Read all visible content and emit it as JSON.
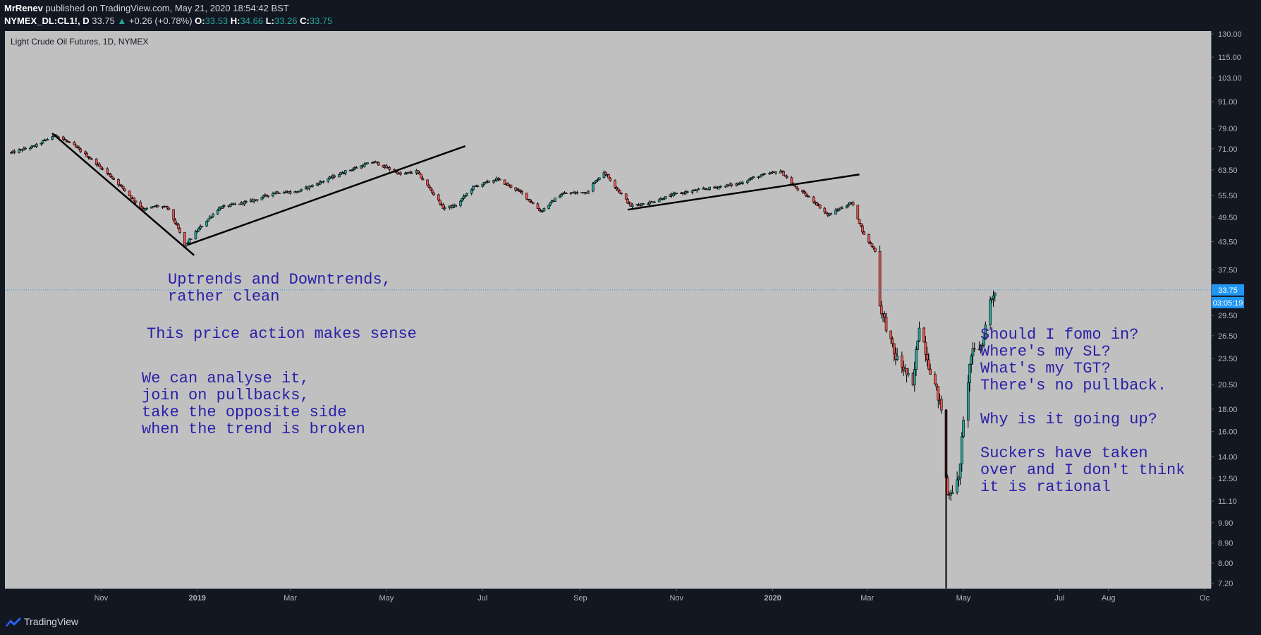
{
  "header": {
    "author": "MrRenev",
    "published": " published on TradingView.com, May 21, 2020 18:54:42 BST",
    "symbol": "NYMEX_DL:CL1!, D",
    "last": "33.75",
    "change": "+0.26 (+0.78%)",
    "o_label": "O:",
    "o_value": "33.53",
    "h_label": "H:",
    "h_value": "34.66",
    "l_label": "L:",
    "l_value": "33.26",
    "c_label": "C:",
    "c_value": "33.75"
  },
  "footer": {
    "brand": "TradingView"
  },
  "annotations": {
    "note1": "Uptrends and Downtrends,\nrather clean",
    "note2": "This price action makes sense",
    "note3": "We can analyse it,\njoin on pullbacks,\ntake the opposite side\nwhen the trend is broken",
    "note4": "Should I fomo in?\nWhere's my SL?\nWhat's my TGT?\nThere's no pullback.\n\nWhy is it going up?\n\nSuckers have taken\nover and I don't think\nit is rational"
  },
  "colors": {
    "plot_bg": "#c0c0c0",
    "axis_bg": "#131722",
    "axis_text": "#b2b5be",
    "up": "#26a69a",
    "down": "#ef5350",
    "candle_wick": "#000000",
    "price_label": "#2196f3",
    "note_text": "#2a1fa8"
  },
  "chart_data": {
    "type": "candlestick",
    "title": "Light Crude Oil Futures, 1D, NYMEX",
    "y_scale": "log",
    "ylim": [
      7.0,
      132.0
    ],
    "y_ticks": [
      "130.00",
      "115.00",
      "103.00",
      "91.00",
      "79.00",
      "71.00",
      "63.50",
      "55.50",
      "49.50",
      "43.50",
      "37.50",
      "33.75",
      "29.50",
      "26.50",
      "23.50",
      "20.50",
      "18.00",
      "16.00",
      "14.00",
      "12.50",
      "11.10",
      "9.90",
      "8.90",
      "8.00",
      "7.20"
    ],
    "x_ticks": [
      "Nov",
      "2019",
      "Mar",
      "May",
      "Jul",
      "Sep",
      "Nov",
      "2020",
      "Mar",
      "May",
      "Jul",
      "Aug",
      "Oc"
    ],
    "x_tick_dates": [
      "2018-11-01",
      "2019-01-01",
      "2019-03-01",
      "2019-05-01",
      "2019-07-01",
      "2019-09-01",
      "2019-11-01",
      "2020-01-01",
      "2020-03-01",
      "2020-05-01",
      "2020-07-01",
      "2020-08-01",
      "2020-10-01"
    ],
    "x_range": [
      "2018-09-01",
      "2020-10-05"
    ],
    "current_price": {
      "value": 33.75,
      "label": "33.75",
      "countdown": "03:05:19"
    },
    "price_path": [
      [
        "2018-09-05",
        69.5
      ],
      [
        "2018-09-20",
        72.0
      ],
      [
        "2018-10-03",
        76.4
      ],
      [
        "2018-10-15",
        72.0
      ],
      [
        "2018-10-25",
        67.5
      ],
      [
        "2018-11-08",
        61.0
      ],
      [
        "2018-11-20",
        55.0
      ],
      [
        "2018-11-28",
        51.5
      ],
      [
        "2018-12-06",
        52.5
      ],
      [
        "2018-12-13",
        52.0
      ],
      [
        "2018-12-20",
        46.5
      ],
      [
        "2018-12-24",
        42.5
      ],
      [
        "2019-01-03",
        47.0
      ],
      [
        "2019-01-15",
        52.0
      ],
      [
        "2019-02-05",
        54.0
      ],
      [
        "2019-02-20",
        56.5
      ],
      [
        "2019-03-05",
        56.5
      ],
      [
        "2019-03-20",
        59.5
      ],
      [
        "2019-04-05",
        63.0
      ],
      [
        "2019-04-23",
        66.3
      ],
      [
        "2019-05-10",
        62.0
      ],
      [
        "2019-05-20",
        63.0
      ],
      [
        "2019-05-30",
        56.5
      ],
      [
        "2019-06-06",
        52.0
      ],
      [
        "2019-06-14",
        52.5
      ],
      [
        "2019-06-25",
        58.0
      ],
      [
        "2019-07-10",
        60.5
      ],
      [
        "2019-07-25",
        56.5
      ],
      [
        "2019-08-07",
        51.0
      ],
      [
        "2019-08-20",
        56.0
      ],
      [
        "2019-09-05",
        56.5
      ],
      [
        "2019-09-16",
        62.9
      ],
      [
        "2019-09-25",
        57.0
      ],
      [
        "2019-10-03",
        52.5
      ],
      [
        "2019-10-15",
        53.5
      ],
      [
        "2019-11-01",
        56.0
      ],
      [
        "2019-11-20",
        57.5
      ],
      [
        "2019-12-10",
        59.0
      ],
      [
        "2019-12-20",
        61.0
      ],
      [
        "2020-01-06",
        63.2
      ],
      [
        "2020-01-15",
        58.0
      ],
      [
        "2020-01-28",
        53.5
      ],
      [
        "2020-02-05",
        50.0
      ],
      [
        "2020-02-20",
        53.5
      ],
      [
        "2020-02-28",
        45.0
      ],
      [
        "2020-03-06",
        41.5
      ],
      [
        "2020-03-09",
        31.1
      ],
      [
        "2020-03-18",
        24.0
      ],
      [
        "2020-03-25",
        22.0
      ],
      [
        "2020-03-30",
        20.1
      ],
      [
        "2020-04-03",
        28.3
      ],
      [
        "2020-04-09",
        22.8
      ],
      [
        "2020-04-17",
        18.0
      ],
      [
        "2020-04-20",
        12.5
      ],
      [
        "2020-04-21",
        11.5
      ],
      [
        "2020-04-28",
        12.3
      ],
      [
        "2020-05-06",
        24.0
      ],
      [
        "2020-05-13",
        25.3
      ],
      [
        "2020-05-18",
        31.8
      ],
      [
        "2020-05-21",
        33.75
      ]
    ],
    "trendlines": [
      {
        "from": [
          "2018-10-01",
          77.0
        ],
        "to": [
          "2018-12-30",
          40.5
        ]
      },
      {
        "from": [
          "2018-12-26",
          42.8
        ],
        "to": [
          "2019-06-20",
          72.0
        ]
      },
      {
        "from": [
          "2019-10-01",
          51.5
        ],
        "to": [
          "2020-02-25",
          62.0
        ]
      }
    ]
  }
}
